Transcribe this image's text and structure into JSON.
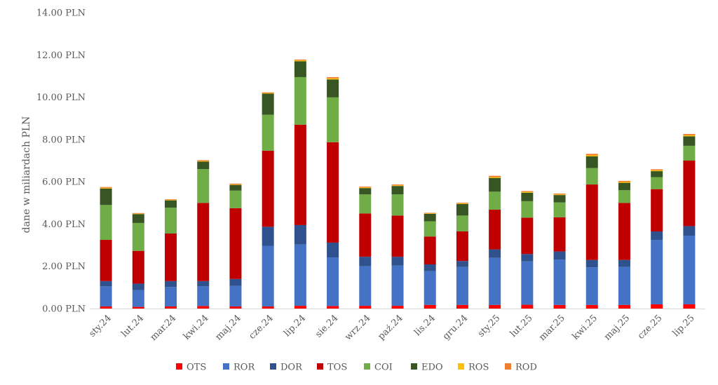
{
  "chart_data": {
    "type": "bar",
    "stacked": true,
    "title": "",
    "xlabel": "",
    "ylabel": "dane w miliardach PLN",
    "ylim": [
      0,
      14
    ],
    "yticks": [
      0,
      2,
      4,
      6,
      8,
      10,
      12,
      14
    ],
    "ytick_labels": [
      "0.00 PLN",
      "2.00 PLN",
      "4.00 PLN",
      "6.00 PLN",
      "8.00 PLN",
      "10.00 PLN",
      "12.00 PLN",
      "14.00 PLN"
    ],
    "grid": false,
    "legend_position": "bottom",
    "categories": [
      "sty.24",
      "lut.24",
      "mar.24",
      "kwi.24",
      "maj.24",
      "cze.24",
      "lip.24",
      "sie.24",
      "wrz.24",
      "paź.24",
      "lis.24",
      "gru.24",
      "sty.25",
      "lut.25",
      "mar.25",
      "kwi.25",
      "maj.25",
      "cze.25",
      "lip.25"
    ],
    "series": [
      {
        "name": "OTS",
        "color": "#FF0000",
        "values": [
          0.1,
          0.08,
          0.1,
          0.12,
          0.1,
          0.1,
          0.13,
          0.12,
          0.13,
          0.13,
          0.17,
          0.17,
          0.17,
          0.18,
          0.17,
          0.17,
          0.17,
          0.2,
          0.2
        ]
      },
      {
        "name": "ROR",
        "color": "#4472C4",
        "values": [
          0.95,
          0.8,
          0.92,
          0.93,
          0.98,
          2.87,
          2.9,
          2.3,
          1.87,
          1.9,
          1.6,
          1.8,
          2.23,
          2.05,
          2.15,
          1.78,
          1.8,
          3.05,
          3.25
        ]
      },
      {
        "name": "DOR",
        "color": "#2F528F",
        "values": [
          0.25,
          0.3,
          0.28,
          0.25,
          0.32,
          0.9,
          0.92,
          0.7,
          0.45,
          0.42,
          0.32,
          0.28,
          0.4,
          0.35,
          0.38,
          0.35,
          0.33,
          0.4,
          0.45
        ]
      },
      {
        "name": "TOS",
        "color": "#C00000",
        "values": [
          1.95,
          1.55,
          2.25,
          3.7,
          3.35,
          3.6,
          4.75,
          4.75,
          2.05,
          1.95,
          1.32,
          1.4,
          1.88,
          1.72,
          1.62,
          3.57,
          2.7,
          2.0,
          3.1
        ]
      },
      {
        "name": "COI",
        "color": "#70AD47",
        "values": [
          1.65,
          1.32,
          1.22,
          1.6,
          0.83,
          1.7,
          2.25,
          2.12,
          0.9,
          1.0,
          0.72,
          0.75,
          0.85,
          0.78,
          0.7,
          0.78,
          0.6,
          0.57,
          0.7
        ]
      },
      {
        "name": "EDO",
        "color": "#375623",
        "values": [
          0.78,
          0.42,
          0.35,
          0.35,
          0.27,
          1.0,
          0.75,
          0.85,
          0.3,
          0.4,
          0.35,
          0.55,
          0.65,
          0.4,
          0.35,
          0.55,
          0.35,
          0.28,
          0.45
        ]
      },
      {
        "name": "ROS",
        "color": "#FFC000",
        "values": [
          0.03,
          0.02,
          0.02,
          0.03,
          0.02,
          0.03,
          0.04,
          0.05,
          0.03,
          0.03,
          0.02,
          0.03,
          0.04,
          0.04,
          0.03,
          0.05,
          0.04,
          0.04,
          0.05
        ]
      },
      {
        "name": "ROD",
        "color": "#ED7D31",
        "values": [
          0.04,
          0.03,
          0.03,
          0.04,
          0.04,
          0.03,
          0.04,
          0.06,
          0.04,
          0.04,
          0.03,
          0.03,
          0.06,
          0.04,
          0.04,
          0.07,
          0.05,
          0.05,
          0.06
        ]
      }
    ]
  }
}
